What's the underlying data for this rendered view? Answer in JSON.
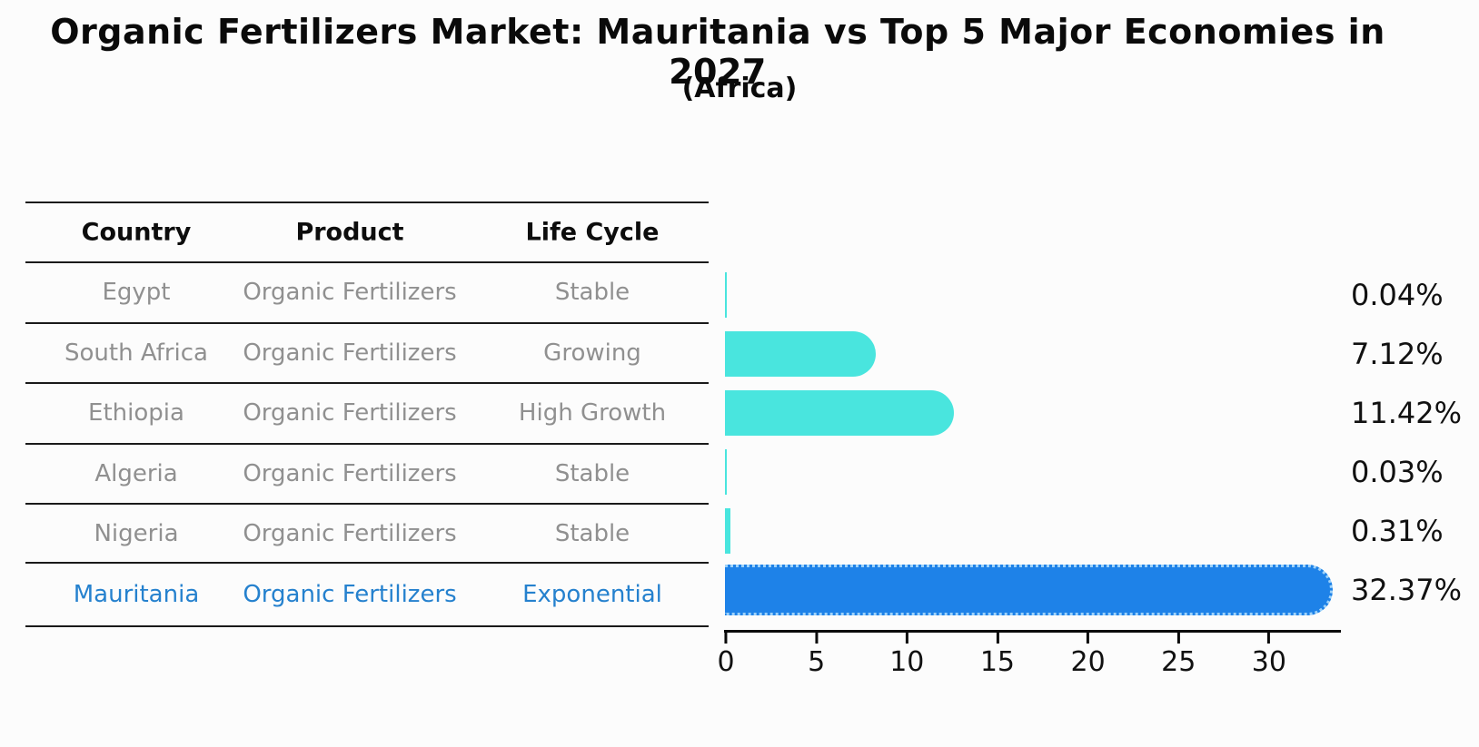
{
  "title": "Organic Fertilizers Market: Mauritania vs Top 5 Major Economies in 2027",
  "subtitle": "(Africa)",
  "table": {
    "headers": [
      "Country",
      "Product",
      "Life Cycle"
    ],
    "rows": [
      {
        "country": "Egypt",
        "product": "Organic Fertilizers",
        "life_cycle": "Stable",
        "highlighted": false
      },
      {
        "country": "South Africa",
        "product": "Organic Fertilizers",
        "life_cycle": "Growing",
        "highlighted": false
      },
      {
        "country": "Ethiopia",
        "product": "Organic Fertilizers",
        "life_cycle": "High Growth",
        "highlighted": false
      },
      {
        "country": "Algeria",
        "product": "Organic Fertilizers",
        "life_cycle": "Stable",
        "highlighted": false
      },
      {
        "country": "Nigeria",
        "product": "Organic Fertilizers",
        "life_cycle": "Stable",
        "highlighted": false
      },
      {
        "country": "Mauritania",
        "product": "Organic Fertilizers",
        "life_cycle": "Exponential",
        "highlighted": true
      }
    ]
  },
  "chart_data": {
    "type": "bar",
    "orientation": "horizontal",
    "title": "Organic Fertilizers Market: Mauritania vs Top 5 Major Economies in 2027",
    "subtitle": "(Africa)",
    "categories": [
      "Egypt",
      "South Africa",
      "Ethiopia",
      "Algeria",
      "Nigeria",
      "Mauritania"
    ],
    "values": [
      0.04,
      7.12,
      11.42,
      0.03,
      0.31,
      32.37
    ],
    "value_labels": [
      "0.04%",
      "7.12%",
      "11.42%",
      "0.03%",
      "0.31%",
      "32.37%"
    ],
    "unit": "%",
    "x_ticks": [
      0,
      5,
      10,
      15,
      20,
      25,
      30
    ],
    "xlim": [
      0,
      34
    ],
    "grid": false,
    "legend": false,
    "highlight_index": 5,
    "colors": {
      "default_bar": "#49E5DE",
      "highlight_bar": "#1E82E8",
      "highlight_bar_edge": "#9ed2fa",
      "highlight_text": "#2581CE",
      "row_text": "#909090",
      "header_text": "#0d0d0d"
    }
  }
}
